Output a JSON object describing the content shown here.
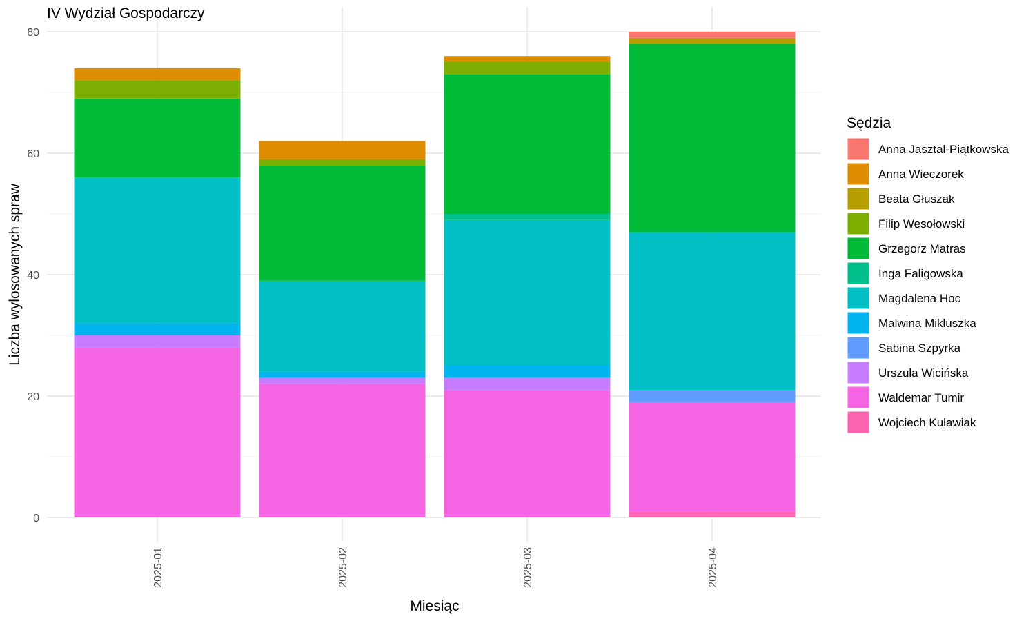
{
  "chart_data": {
    "type": "bar",
    "stacked": true,
    "title": "IV Wydział Gospodarczy",
    "xlabel": "Miesiąc",
    "ylabel": "Liczba wylosowanych spraw",
    "ylim": [
      0,
      80
    ],
    "yticks": [
      0,
      20,
      40,
      60,
      80
    ],
    "grid": true,
    "legend_title": "Sędzia",
    "legend_position": "right",
    "categories": [
      "2025-01",
      "2025-02",
      "2025-03",
      "2025-04"
    ],
    "series": [
      {
        "name": "Anna Jasztal-Piątkowska",
        "color": "#F8766D",
        "values": [
          0,
          0,
          0,
          1
        ]
      },
      {
        "name": "Anna Wieczorek",
        "color": "#DE8C00",
        "values": [
          2,
          3,
          1,
          0
        ]
      },
      {
        "name": "Beata Głuszak",
        "color": "#B79F00",
        "values": [
          0,
          0,
          0,
          1
        ]
      },
      {
        "name": "Filip Wesołowski",
        "color": "#7CAE00",
        "values": [
          3,
          1,
          2,
          0
        ]
      },
      {
        "name": "Grzegorz Matras",
        "color": "#00BA38",
        "values": [
          13,
          19,
          23,
          31
        ]
      },
      {
        "name": "Inga Faligowska",
        "color": "#00C08B",
        "values": [
          0,
          0,
          1,
          0
        ]
      },
      {
        "name": "Magdalena Hoc",
        "color": "#00BFC4",
        "values": [
          24,
          15,
          24,
          26
        ]
      },
      {
        "name": "Malwina Mikluszka",
        "color": "#00B4F0",
        "values": [
          2,
          1,
          2,
          0
        ]
      },
      {
        "name": "Sabina Szpyrka",
        "color": "#619CFF",
        "values": [
          0,
          0,
          0,
          2
        ]
      },
      {
        "name": "Urszula Wicińska",
        "color": "#C77CFF",
        "values": [
          2,
          1,
          2,
          0
        ]
      },
      {
        "name": "Waldemar Tumir",
        "color": "#F564E3",
        "values": [
          28,
          22,
          21,
          18
        ]
      },
      {
        "name": "Wojciech Kulawiak",
        "color": "#FF64B0",
        "values": [
          0,
          0,
          0,
          1
        ]
      }
    ]
  }
}
